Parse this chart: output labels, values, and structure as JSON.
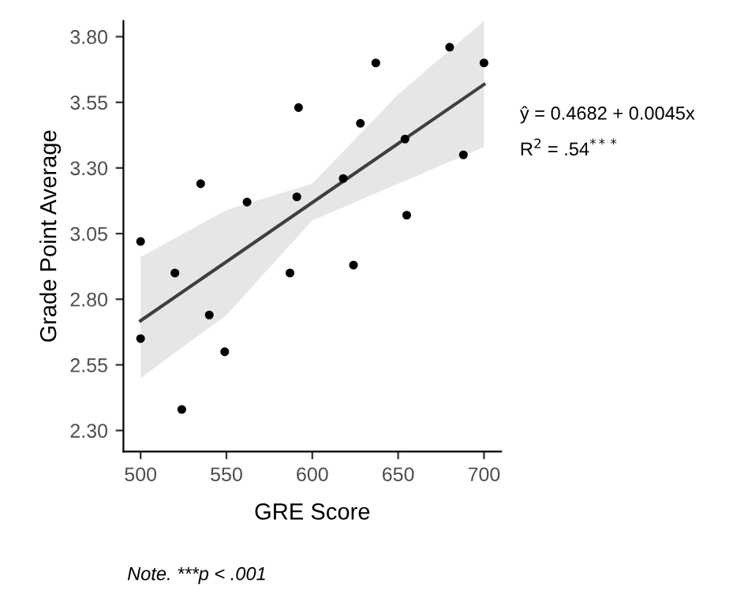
{
  "chart_data": {
    "type": "scatter",
    "xlabel": "GRE Score",
    "ylabel": "Grade Point Average",
    "xlim": [
      490,
      710
    ],
    "xticks": [
      500,
      550,
      600,
      650,
      700
    ],
    "ylim": [
      2.22,
      3.86
    ],
    "yticks": [
      {
        "value": 2.3,
        "label": "2.30"
      },
      {
        "value": 2.55,
        "label": "2.55"
      },
      {
        "value": 2.8,
        "label": "2.80"
      },
      {
        "value": 3.05,
        "label": "3.05"
      },
      {
        "value": 3.3,
        "label": "3.30"
      },
      {
        "value": 3.55,
        "label": "3.55"
      },
      {
        "value": 3.8,
        "label": "3.80"
      }
    ],
    "grid": false,
    "series": [
      {
        "marker": "circle",
        "color": "#000000",
        "x": [
          500,
          500,
          520,
          524,
          535,
          540,
          549,
          562,
          587,
          591,
          592,
          618,
          624,
          628,
          637,
          654,
          655,
          680,
          688,
          700
        ],
        "values": [
          3.02,
          2.65,
          2.9,
          2.38,
          3.24,
          2.74,
          2.6,
          3.17,
          2.9,
          3.19,
          3.53,
          3.26,
          2.93,
          3.47,
          3.7,
          3.41,
          3.12,
          3.76,
          3.35,
          3.7
        ]
      },
      {
        "type": "line",
        "marker": "none",
        "color": "#3f3f3f",
        "x": [
          500,
          550,
          600,
          650,
          700
        ],
        "values": [
          2.718,
          2.943,
          3.168,
          3.393,
          3.618
        ],
        "lower": [
          2.5,
          2.74,
          3.1,
          3.24,
          3.38
        ],
        "upper": [
          2.96,
          3.14,
          3.24,
          3.58,
          3.86
        ]
      }
    ],
    "annotations": [
      "ŷ = 0.4682 + 0.0045x",
      "R$^{2}$ = .54$^{***}$",
      "Note. ***p < .001"
    ]
  }
}
